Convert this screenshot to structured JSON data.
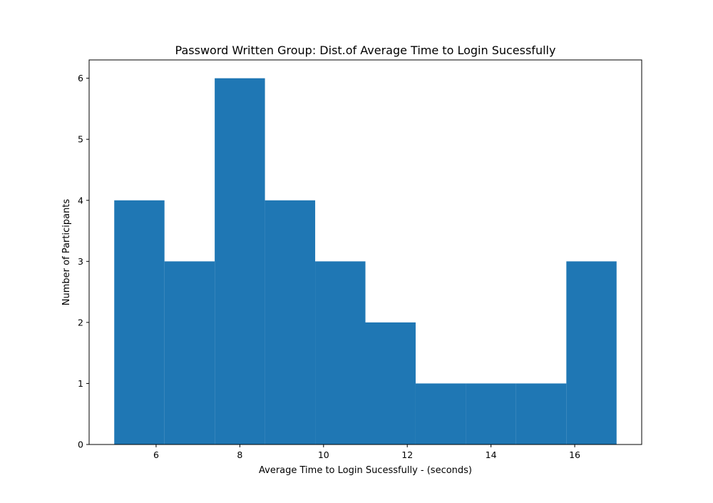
{
  "chart_data": {
    "type": "bar",
    "title": "Password Written Group: Dist.of Average Time to Login Sucessfully",
    "xlabel": "Average Time to Login Sucessfully - (seconds)",
    "ylabel": "Number of Participants",
    "bin_edges": [
      5.0,
      6.2,
      7.4,
      8.6,
      9.8,
      11.0,
      12.2,
      13.4,
      14.6,
      15.8,
      17.0
    ],
    "values": [
      4,
      3,
      6,
      4,
      3,
      2,
      1,
      1,
      1,
      3
    ],
    "xlim": [
      4.4,
      17.6
    ],
    "ylim": [
      0,
      6.3
    ],
    "xticks": [
      6,
      8,
      10,
      12,
      14,
      16
    ],
    "yticks": [
      0,
      1,
      2,
      3,
      4,
      5,
      6
    ],
    "bar_color": "#1f77b4",
    "grid": false,
    "legend": "none"
  }
}
